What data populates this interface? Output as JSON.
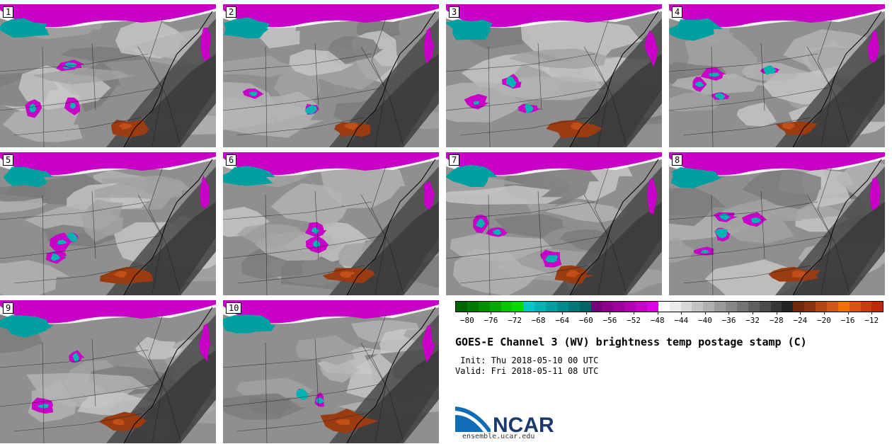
{
  "panels": [
    {
      "label": "1"
    },
    {
      "label": "2"
    },
    {
      "label": "3"
    },
    {
      "label": "4"
    },
    {
      "label": "5"
    },
    {
      "label": "6"
    },
    {
      "label": "7"
    },
    {
      "label": "8"
    },
    {
      "label": "9"
    },
    {
      "label": "10"
    }
  ],
  "colorbar": {
    "colors": [
      "#006400",
      "#007a00",
      "#009000",
      "#00a800",
      "#00c800",
      "#00dc00",
      "#00c8c8",
      "#00b4b4",
      "#00a0a0",
      "#008c8c",
      "#007878",
      "#006464",
      "#780078",
      "#8c008c",
      "#a000a0",
      "#b400b4",
      "#c800c8",
      "#e000e0",
      "#ffffff",
      "#ebebeb",
      "#d7d7d7",
      "#c3c3c3",
      "#afafaf",
      "#9b9b9b",
      "#878787",
      "#737373",
      "#5f5f5f",
      "#4b4b4b",
      "#373737",
      "#232323",
      "#6e2a0a",
      "#8c3210",
      "#b44614",
      "#d2581a",
      "#f07000",
      "#e05010",
      "#d03a10",
      "#c02808"
    ],
    "tick_labels": [
      "−80",
      "−76",
      "−72",
      "−68",
      "−64",
      "−60",
      "−56",
      "−52",
      "−48",
      "−44",
      "−40",
      "−36",
      "−32",
      "−28",
      "−24",
      "−20",
      "−16",
      "−12"
    ],
    "tick_values": [
      -80,
      -76,
      -72,
      -68,
      -64,
      -60,
      -56,
      -52,
      -48,
      -44,
      -40,
      -36,
      -32,
      -28,
      -24,
      -20,
      -16,
      -12
    ],
    "range": [
      -82,
      -10
    ]
  },
  "title": "GOES-E Channel 3 (WV) brightness temp postage stamp (C)",
  "init": " Init: Thu 2018-05-10 00 UTC",
  "valid": "Valid: Fri 2018-05-11 08 UTC",
  "logo": {
    "text": "NCAR",
    "url": "ensemble.ucar.edu",
    "colors": {
      "blue": "#0e6db4",
      "navy": "#1b3a6b"
    }
  }
}
